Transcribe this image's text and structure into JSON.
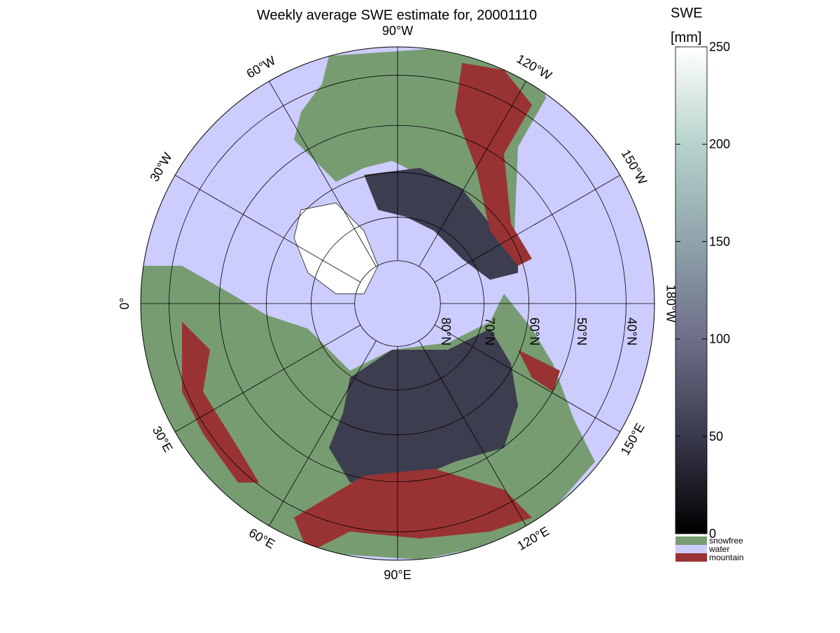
{
  "title": "Weekly average SWE estimate for, 20001110",
  "longitudes": [
    {
      "value": -90,
      "label": "90°W"
    },
    {
      "value": -60,
      "label": "60°W"
    },
    {
      "value": -30,
      "label": "30°W"
    },
    {
      "value": 0,
      "label": "0°"
    },
    {
      "value": 30,
      "label": "30°E"
    },
    {
      "value": 60,
      "label": "60°E"
    },
    {
      "value": 90,
      "label": "90°E"
    },
    {
      "value": 120,
      "label": "120°E"
    },
    {
      "value": 150,
      "label": "150°E"
    },
    {
      "value": 180,
      "label": "180°W"
    },
    {
      "value": -150,
      "label": "150°W"
    },
    {
      "value": -120,
      "label": "120°W"
    }
  ],
  "latitudes": [
    {
      "value": 80,
      "label": "80°N"
    },
    {
      "value": 70,
      "label": "70°N"
    },
    {
      "value": 60,
      "label": "60°N"
    },
    {
      "value": 50,
      "label": "50°N"
    },
    {
      "value": 40,
      "label": "40°N"
    }
  ],
  "colorbar": {
    "title": "SWE",
    "unit": "[mm]",
    "range": [
      0,
      250
    ],
    "ticks": [
      0,
      50,
      100,
      150,
      200,
      250
    ],
    "colors": [
      "#000000",
      "#3a3a4e",
      "#6e6e88",
      "#8fa4ab",
      "#b7d2cc",
      "#ffffff"
    ]
  },
  "legend": [
    {
      "name": "snowfree",
      "color": "#779c72"
    },
    {
      "name": "water",
      "color": "#ccccfe"
    },
    {
      "name": "mountain",
      "color": "#993333"
    }
  ]
}
